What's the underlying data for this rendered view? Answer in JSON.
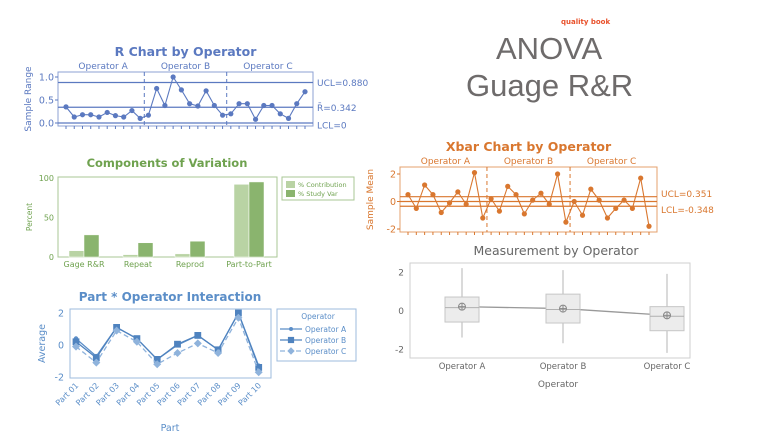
{
  "header": {
    "logo_text": "quality book",
    "title_line1": "ANOVA",
    "title_line2": "Guage R&R"
  },
  "colors": {
    "r_chart": "#5b79c0",
    "components": "#6fa24f",
    "components_light": "#b9d3a4",
    "components_dark": "#8ab46e",
    "interaction": "#5b8ec8",
    "xbar": "#d9772f",
    "boxplot": "#8a8a8a"
  },
  "chart_data": [
    {
      "type": "line",
      "title": "R Chart by Operator",
      "ylabel": "Sample Range",
      "ylim": [
        0,
        1.0
      ],
      "yticks": [
        "0.0",
        "0.5",
        "1.0"
      ],
      "groups": [
        "Operator A",
        "Operator B",
        "Operator C"
      ],
      "values": [
        0.35,
        0.13,
        0.18,
        0.18,
        0.13,
        0.23,
        0.16,
        0.13,
        0.27,
        0.1,
        0.17,
        0.75,
        0.38,
        1.0,
        0.72,
        0.42,
        0.37,
        0.7,
        0.38,
        0.17,
        0.2,
        0.42,
        0.42,
        0.08,
        0.38,
        0.38,
        0.2,
        0.1,
        0.42,
        0.68
      ],
      "reference_lines": [
        {
          "label": "UCL=0.880",
          "value": 0.88
        },
        {
          "label": "R̄=0.342",
          "value": 0.342
        },
        {
          "label": "LCL=0",
          "value": 0
        }
      ]
    },
    {
      "type": "bar",
      "title": "Components of Variation",
      "ylabel": "Percent",
      "ylim": [
        0,
        100
      ],
      "yticks": [
        "0",
        "50",
        "100"
      ],
      "categories": [
        "Gage R&R",
        "Repeat",
        "Reprod",
        "Part-to-Part"
      ],
      "series": [
        {
          "name": "% Contribution",
          "values": [
            8,
            3,
            4,
            92
          ]
        },
        {
          "name": "% Study Var",
          "values": [
            28,
            18,
            20,
            95
          ]
        }
      ],
      "legend": "right"
    },
    {
      "type": "line",
      "title": "Part * Operator Interaction",
      "xlabel": "Part",
      "ylabel": "Average",
      "ylim": [
        -2,
        2
      ],
      "yticks": [
        "-2",
        "0",
        "2"
      ],
      "categories": [
        "Part 01",
        "Part 02",
        "Part 03",
        "Part 04",
        "Part 05",
        "Part 06",
        "Part 07",
        "Part 08",
        "Part 09",
        "Part 10"
      ],
      "legend_title": "Operator",
      "legend": "right",
      "series": [
        {
          "name": "Operator A",
          "marker": "circle",
          "values": [
            0.4,
            -0.7,
            1.1,
            0.4,
            -0.9,
            0.0,
            0.6,
            -0.3,
            2.0,
            -1.3
          ]
        },
        {
          "name": "Operator B",
          "marker": "square",
          "values": [
            0.2,
            -0.8,
            1.1,
            0.4,
            -0.9,
            0.05,
            0.6,
            -0.3,
            2.0,
            -1.4
          ]
        },
        {
          "name": "Operator C",
          "marker": "diamond",
          "values": [
            -0.1,
            -1.1,
            0.9,
            0.2,
            -1.2,
            -0.5,
            0.1,
            -0.5,
            1.7,
            -1.7
          ]
        }
      ]
    },
    {
      "type": "line",
      "title": "Xbar Chart by Operator",
      "ylabel": "Sample Mean",
      "ylim": [
        -2,
        2
      ],
      "yticks": [
        "-2",
        "0",
        "2"
      ],
      "groups": [
        "Operator A",
        "Operator B",
        "Operator C"
      ],
      "values": [
        0.5,
        -0.5,
        1.2,
        0.5,
        -0.8,
        -0.1,
        0.7,
        -0.2,
        2.1,
        -1.2,
        0.2,
        -0.7,
        1.1,
        0.5,
        -0.9,
        0.1,
        0.6,
        -0.2,
        2.0,
        -1.5,
        0.0,
        -1.0,
        0.9,
        0.1,
        -1.2,
        -0.5,
        0.1,
        -0.5,
        1.7,
        -1.8
      ],
      "reference_lines": [
        {
          "label": "UCL=0.351",
          "value": 0.351
        },
        {
          "label": "",
          "value": 0
        },
        {
          "label": "LCL=-0.348",
          "value": -0.348
        }
      ]
    },
    {
      "type": "box",
      "title": "Measurement by Operator",
      "xlabel": "Operator",
      "ylim": [
        -2.5,
        2.5
      ],
      "yticks": [
        "-2",
        "0",
        "2"
      ],
      "categories": [
        "Operator A",
        "Operator B",
        "Operator C"
      ],
      "boxes": [
        {
          "min": -1.4,
          "q1": -0.6,
          "median": 0.15,
          "q3": 0.7,
          "max": 2.2,
          "mean": 0.2
        },
        {
          "min": -1.7,
          "q1": -0.65,
          "median": 0.05,
          "q3": 0.85,
          "max": 2.1,
          "mean": 0.1
        },
        {
          "min": -2.2,
          "q1": -1.05,
          "median": -0.3,
          "q3": 0.2,
          "max": 1.9,
          "mean": -0.25
        }
      ]
    }
  ]
}
